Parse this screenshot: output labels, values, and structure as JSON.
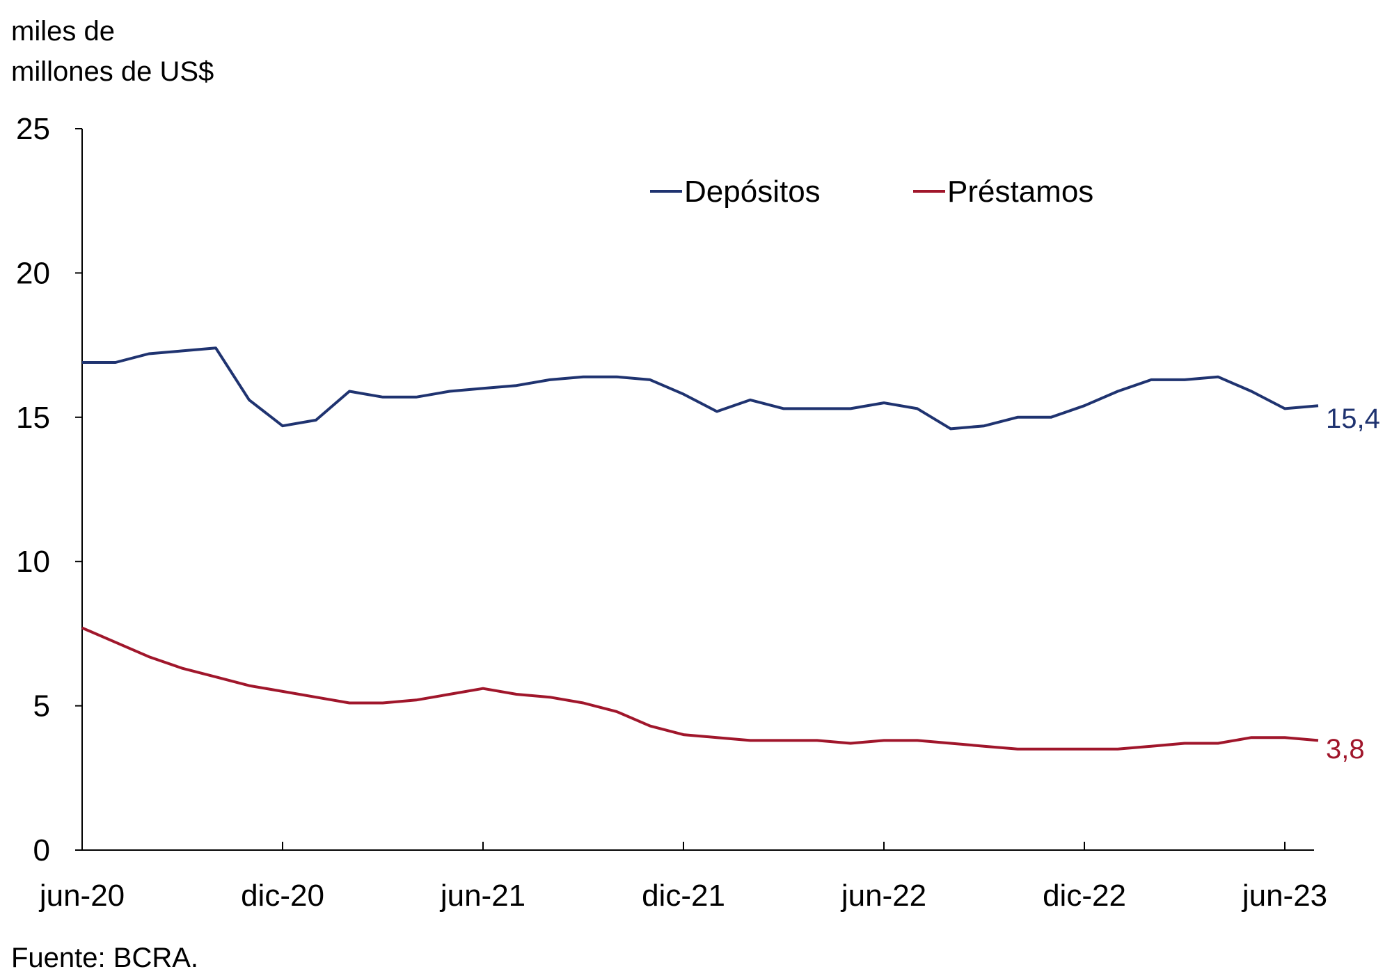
{
  "chart_data": {
    "type": "line",
    "ylabel_lines": [
      "miles de",
      "millones de US$"
    ],
    "ylim": [
      0,
      25
    ],
    "yticks": [
      "0",
      "5",
      "10",
      "15",
      "20",
      "25"
    ],
    "xticks": [
      "jun-20",
      "dic-20",
      "jun-21",
      "dic-21",
      "jun-22",
      "dic-22",
      "jun-23"
    ],
    "x": [
      "jun-20",
      "jul-20",
      "ago-20",
      "sep-20",
      "oct-20",
      "nov-20",
      "dic-20",
      "ene-21",
      "feb-21",
      "mar-21",
      "abr-21",
      "may-21",
      "jun-21",
      "jul-21",
      "ago-21",
      "sep-21",
      "oct-21",
      "nov-21",
      "dic-21",
      "ene-22",
      "feb-22",
      "mar-22",
      "abr-22",
      "may-22",
      "jun-22",
      "jul-22",
      "ago-22",
      "sep-22",
      "oct-22",
      "nov-22",
      "dic-22",
      "ene-23",
      "feb-23",
      "mar-23",
      "abr-23",
      "may-23",
      "jun-23",
      "jul-23"
    ],
    "series": [
      {
        "name": "Depósitos",
        "color": "#1f3370",
        "end_label": "15,4",
        "values": [
          16.9,
          16.9,
          17.2,
          17.3,
          17.4,
          15.6,
          14.7,
          14.9,
          15.9,
          15.7,
          15.7,
          15.9,
          16.0,
          16.1,
          16.3,
          16.4,
          16.4,
          16.3,
          15.8,
          15.2,
          15.6,
          15.3,
          15.3,
          15.3,
          15.5,
          15.3,
          14.6,
          14.7,
          15.0,
          15.0,
          15.4,
          15.9,
          16.3,
          16.3,
          16.4,
          15.9,
          15.3,
          15.4
        ]
      },
      {
        "name": "Préstamos",
        "color": "#a0162b",
        "end_label": "3,8",
        "values": [
          7.7,
          7.2,
          6.7,
          6.3,
          6.0,
          5.7,
          5.5,
          5.3,
          5.1,
          5.1,
          5.2,
          5.4,
          5.6,
          5.4,
          5.3,
          5.1,
          4.8,
          4.3,
          4.0,
          3.9,
          3.8,
          3.8,
          3.8,
          3.7,
          3.8,
          3.8,
          3.7,
          3.6,
          3.5,
          3.5,
          3.5,
          3.5,
          3.6,
          3.7,
          3.7,
          3.9,
          3.9,
          3.8
        ]
      }
    ],
    "legend": "top-center",
    "grid": false
  },
  "source": "Fuente: BCRA."
}
